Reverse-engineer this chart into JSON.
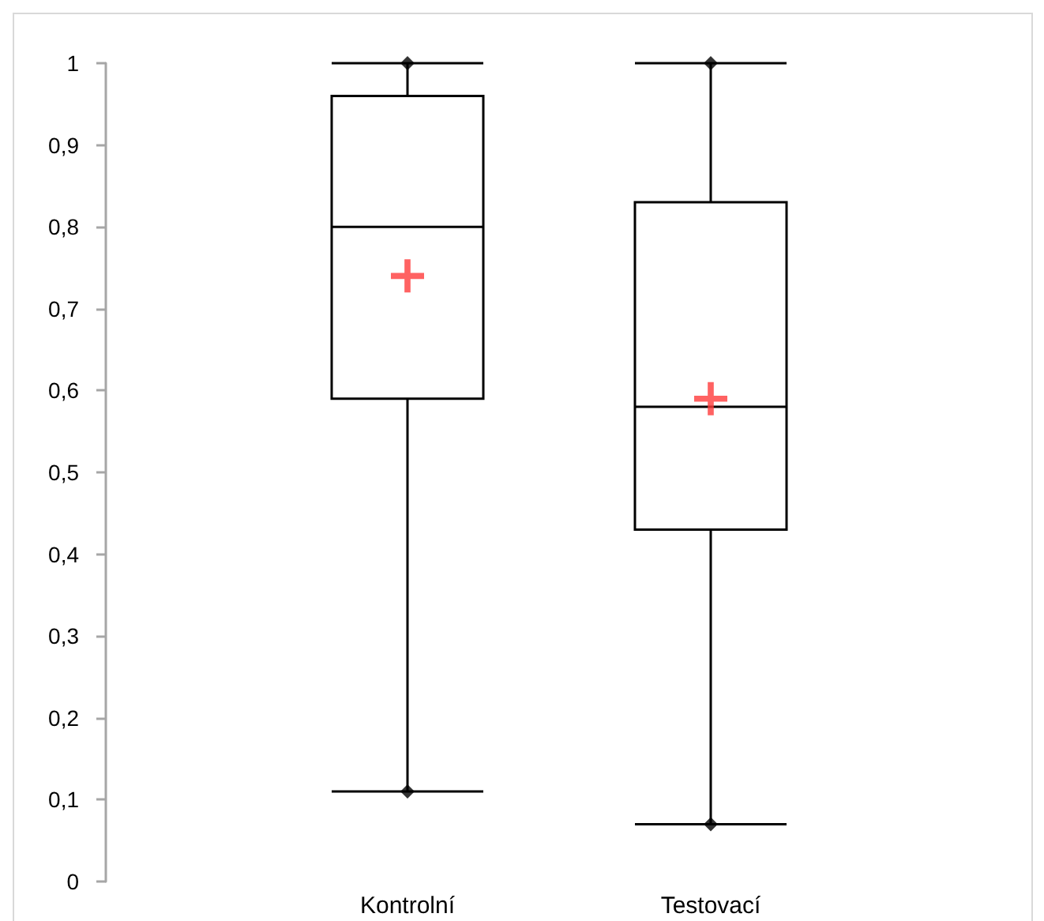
{
  "chart_data": {
    "type": "box",
    "categories": [
      "Kontrolní",
      "Testovací"
    ],
    "series": [
      {
        "color": "#000000",
        "boxes": [
          {
            "low": 0.11,
            "q1": 0.59,
            "median": 0.8,
            "q3": 0.96,
            "high": 1
          },
          {
            "low": 0.07,
            "q1": 0.43,
            "median": 0.58,
            "q3": 0.83,
            "high": 1
          }
        ]
      },
      {
        "type": "scatter",
        "x": [
          "Kontrolní",
          "Kontrolní",
          "Testovací",
          "Testovací"
        ],
        "values": [
          0.11,
          1,
          0.07,
          1
        ],
        "color": "#000000",
        "marker": "diamond"
      },
      {
        "type": "scatter",
        "x": [
          "Kontrolní",
          "Testovací"
        ],
        "values": [
          0.74,
          0.59
        ],
        "color": "#ff3b3b",
        "marker": "cross"
      }
    ],
    "ylim": [
      0,
      1
    ],
    "yticks": [
      0,
      {
        "value": 0.1,
        "label": "0,1"
      },
      {
        "value": 0.2,
        "label": "0,2"
      },
      {
        "value": 0.3,
        "label": "0,3"
      },
      {
        "value": 0.4,
        "label": "0,4"
      },
      {
        "value": 0.5,
        "label": "0,5"
      },
      {
        "value": 0.6,
        "label": "0,6"
      },
      {
        "value": 0.7,
        "label": "0,7"
      },
      {
        "value": 0.8,
        "label": "0,8"
      },
      {
        "value": 0.9,
        "label": "0,9"
      },
      1
    ]
  }
}
